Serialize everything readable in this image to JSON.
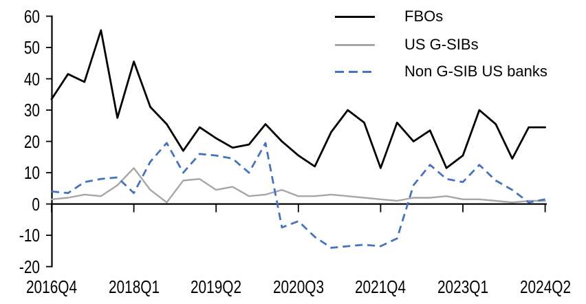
{
  "page": {
    "background": "#ffffff"
  },
  "chart_data": {
    "type": "line",
    "title": "",
    "grid": "off",
    "legend_position": "top-right",
    "axis_color": "#000000",
    "ylim": [
      -20,
      60
    ],
    "y_ticks": [
      -20,
      -10,
      0,
      10,
      20,
      30,
      40,
      50,
      60
    ],
    "x_tick_labels": [
      "2016Q4",
      "2018Q1",
      "2019Q2",
      "2020Q3",
      "2021Q4",
      "2023Q1",
      "2024Q2"
    ],
    "x_tick_indices": [
      0,
      5,
      10,
      15,
      20,
      25,
      30
    ],
    "categories": [
      "2016Q4",
      "2017Q1",
      "2017Q2",
      "2017Q3",
      "2017Q4",
      "2018Q1",
      "2018Q2",
      "2018Q3",
      "2018Q4",
      "2019Q1",
      "2019Q2",
      "2019Q3",
      "2019Q4",
      "2020Q1",
      "2020Q2",
      "2020Q3",
      "2020Q4",
      "2021Q1",
      "2021Q2",
      "2021Q3",
      "2021Q4",
      "2022Q1",
      "2022Q2",
      "2022Q3",
      "2022Q4",
      "2023Q1",
      "2023Q2",
      "2023Q3",
      "2023Q4",
      "2024Q1",
      "2024Q2"
    ],
    "series": [
      {
        "name": "FBOs",
        "color": "#000000",
        "line_style": "solid",
        "values": [
          33.5,
          41.5,
          39,
          55.5,
          27.5,
          45.5,
          31,
          25.5,
          17,
          24.5,
          21,
          18,
          19,
          25.5,
          20,
          15.5,
          12,
          23,
          30,
          26,
          11.5,
          26,
          20,
          23.5,
          11.5,
          15.5,
          30,
          25.5,
          14.5,
          24.5,
          24.5
        ]
      },
      {
        "name": "US G-SIBs",
        "color": "#a6a6a6",
        "line_style": "solid",
        "values": [
          1.5,
          2,
          3,
          2.5,
          6,
          11.5,
          4.5,
          0.5,
          7.5,
          8,
          4.5,
          5.5,
          2.5,
          3,
          4.5,
          2.5,
          2.5,
          3,
          2.5,
          2,
          1.5,
          1,
          2,
          2,
          2.5,
          1.5,
          1.5,
          1,
          0.5,
          1,
          1
        ]
      },
      {
        "name": "Non G-SIB US banks",
        "color": "#4472c4",
        "line_style": "dashed",
        "values": [
          4,
          3.5,
          7,
          8,
          8.5,
          3.5,
          13.5,
          19.5,
          10,
          16,
          15.5,
          14.5,
          10,
          19.5,
          -7.5,
          -5.5,
          -10.5,
          -14,
          -13.5,
          -13,
          -13.5,
          -11,
          6,
          12.5,
          8,
          7,
          12.5,
          7.5,
          4.5,
          0.5,
          1.5
        ]
      }
    ]
  }
}
